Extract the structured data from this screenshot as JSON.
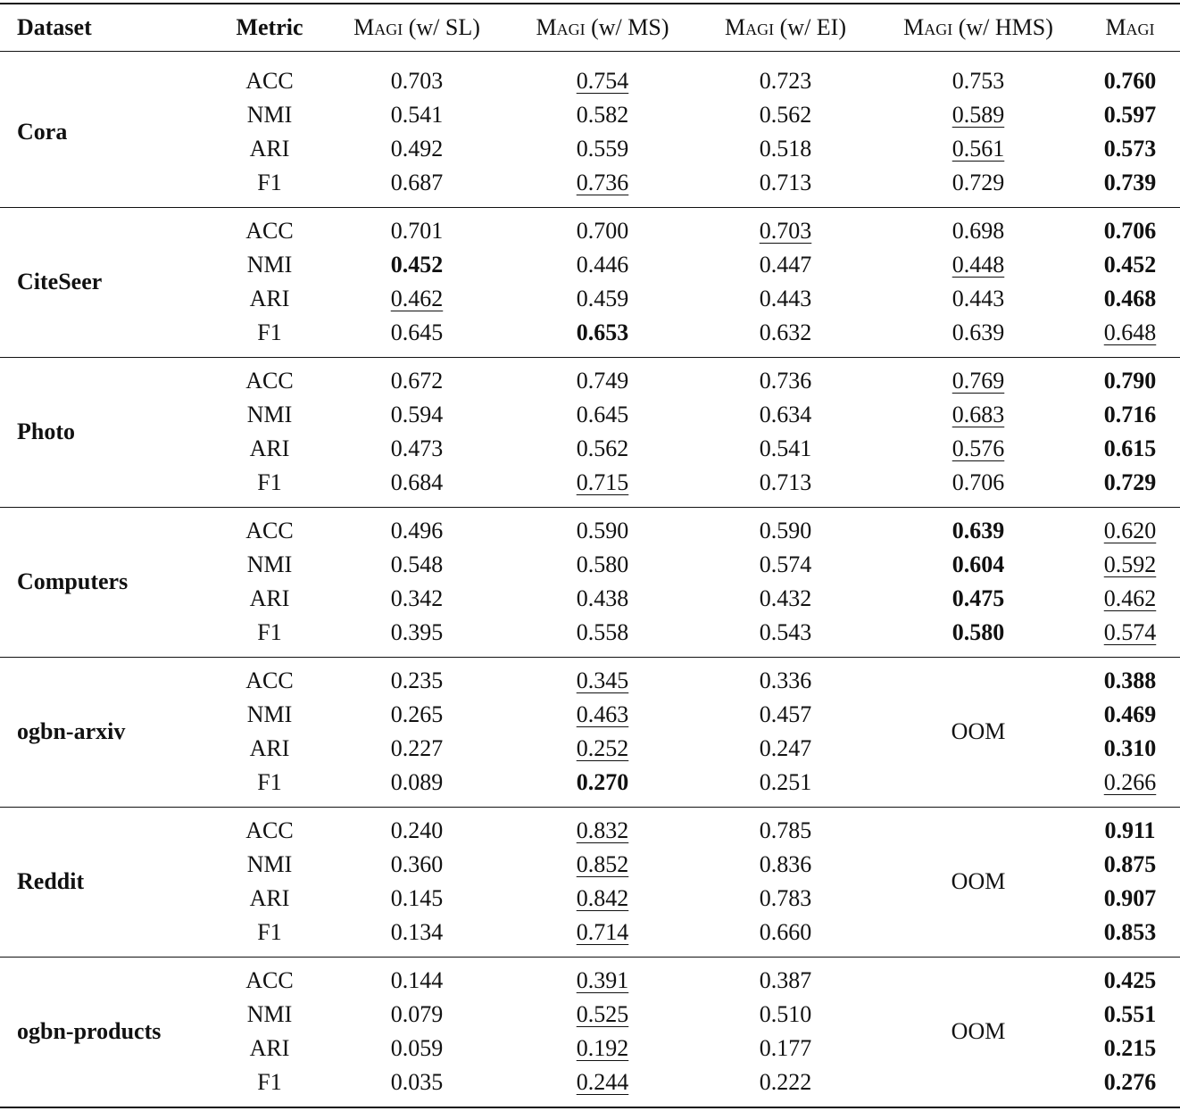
{
  "header": {
    "dataset": "Dataset",
    "metric": "Metric",
    "methods": [
      {
        "name": "Magi",
        "variant": "(w/ SL)"
      },
      {
        "name": "Magi",
        "variant": "(w/ MS)"
      },
      {
        "name": "Magi",
        "variant": "(w/ EI)"
      },
      {
        "name": "Magi",
        "variant": "(w/ HMS)"
      },
      {
        "name": "Magi"
      }
    ]
  },
  "groups": [
    {
      "dataset": "Cora",
      "rows": [
        {
          "metric": "ACC",
          "values": [
            "0.703",
            "0.754",
            "0.723",
            "0.753",
            "0.760"
          ],
          "bold": [
            4
          ],
          "underline": [
            1
          ]
        },
        {
          "metric": "NMI",
          "values": [
            "0.541",
            "0.582",
            "0.562",
            "0.589",
            "0.597"
          ],
          "bold": [
            4
          ],
          "underline": [
            3
          ]
        },
        {
          "metric": "ARI",
          "values": [
            "0.492",
            "0.559",
            "0.518",
            "0.561",
            "0.573"
          ],
          "bold": [
            4
          ],
          "underline": [
            3
          ]
        },
        {
          "metric": "F1",
          "values": [
            "0.687",
            "0.736",
            "0.713",
            "0.729",
            "0.739"
          ],
          "bold": [
            4
          ],
          "underline": [
            1
          ]
        }
      ]
    },
    {
      "dataset": "CiteSeer",
      "rows": [
        {
          "metric": "ACC",
          "values": [
            "0.701",
            "0.700",
            "0.703",
            "0.698",
            "0.706"
          ],
          "bold": [
            4
          ],
          "underline": [
            2
          ]
        },
        {
          "metric": "NMI",
          "values": [
            "0.452",
            "0.446",
            "0.447",
            "0.448",
            "0.452"
          ],
          "bold": [
            0,
            4
          ],
          "underline": [
            3
          ]
        },
        {
          "metric": "ARI",
          "values": [
            "0.462",
            "0.459",
            "0.443",
            "0.443",
            "0.468"
          ],
          "bold": [
            4
          ],
          "underline": [
            0
          ]
        },
        {
          "metric": "F1",
          "values": [
            "0.645",
            "0.653",
            "0.632",
            "0.639",
            "0.648"
          ],
          "bold": [
            1
          ],
          "underline": [
            4
          ]
        }
      ]
    },
    {
      "dataset": "Photo",
      "rows": [
        {
          "metric": "ACC",
          "values": [
            "0.672",
            "0.749",
            "0.736",
            "0.769",
            "0.790"
          ],
          "bold": [
            4
          ],
          "underline": [
            3
          ]
        },
        {
          "metric": "NMI",
          "values": [
            "0.594",
            "0.645",
            "0.634",
            "0.683",
            "0.716"
          ],
          "bold": [
            4
          ],
          "underline": [
            3
          ]
        },
        {
          "metric": "ARI",
          "values": [
            "0.473",
            "0.562",
            "0.541",
            "0.576",
            "0.615"
          ],
          "bold": [
            4
          ],
          "underline": [
            3
          ]
        },
        {
          "metric": "F1",
          "values": [
            "0.684",
            "0.715",
            "0.713",
            "0.706",
            "0.729"
          ],
          "bold": [
            4
          ],
          "underline": [
            1
          ]
        }
      ]
    },
    {
      "dataset": "Computers",
      "rows": [
        {
          "metric": "ACC",
          "values": [
            "0.496",
            "0.590",
            "0.590",
            "0.639",
            "0.620"
          ],
          "bold": [
            3
          ],
          "underline": [
            4
          ]
        },
        {
          "metric": "NMI",
          "values": [
            "0.548",
            "0.580",
            "0.574",
            "0.604",
            "0.592"
          ],
          "bold": [
            3
          ],
          "underline": [
            4
          ]
        },
        {
          "metric": "ARI",
          "values": [
            "0.342",
            "0.438",
            "0.432",
            "0.475",
            "0.462"
          ],
          "bold": [
            3
          ],
          "underline": [
            4
          ]
        },
        {
          "metric": "F1",
          "values": [
            "0.395",
            "0.558",
            "0.543",
            "0.580",
            "0.574"
          ],
          "bold": [
            3
          ],
          "underline": [
            4
          ]
        }
      ]
    },
    {
      "dataset": "ogbn-arxiv",
      "merged": {
        "column": 3,
        "text": "OOM"
      },
      "rows": [
        {
          "metric": "ACC",
          "values": [
            "0.235",
            "0.345",
            "0.336",
            null,
            "0.388"
          ],
          "bold": [
            4
          ],
          "underline": [
            1
          ]
        },
        {
          "metric": "NMI",
          "values": [
            "0.265",
            "0.463",
            "0.457",
            null,
            "0.469"
          ],
          "bold": [
            4
          ],
          "underline": [
            1
          ]
        },
        {
          "metric": "ARI",
          "values": [
            "0.227",
            "0.252",
            "0.247",
            null,
            "0.310"
          ],
          "bold": [
            4
          ],
          "underline": [
            1
          ]
        },
        {
          "metric": "F1",
          "values": [
            "0.089",
            "0.270",
            "0.251",
            null,
            "0.266"
          ],
          "bold": [
            1
          ],
          "underline": [
            4
          ]
        }
      ]
    },
    {
      "dataset": "Reddit",
      "merged": {
        "column": 3,
        "text": "OOM"
      },
      "rows": [
        {
          "metric": "ACC",
          "values": [
            "0.240",
            "0.832",
            "0.785",
            null,
            "0.911"
          ],
          "bold": [
            4
          ],
          "underline": [
            1
          ]
        },
        {
          "metric": "NMI",
          "values": [
            "0.360",
            "0.852",
            "0.836",
            null,
            "0.875"
          ],
          "bold": [
            4
          ],
          "underline": [
            1
          ]
        },
        {
          "metric": "ARI",
          "values": [
            "0.145",
            "0.842",
            "0.783",
            null,
            "0.907"
          ],
          "bold": [
            4
          ],
          "underline": [
            1
          ]
        },
        {
          "metric": "F1",
          "values": [
            "0.134",
            "0.714",
            "0.660",
            null,
            "0.853"
          ],
          "bold": [
            4
          ],
          "underline": [
            1
          ]
        }
      ]
    },
    {
      "dataset": "ogbn-products",
      "merged": {
        "column": 3,
        "text": "OOM"
      },
      "rows": [
        {
          "metric": "ACC",
          "values": [
            "0.144",
            "0.391",
            "0.387",
            null,
            "0.425"
          ],
          "bold": [
            4
          ],
          "underline": [
            1
          ]
        },
        {
          "metric": "NMI",
          "values": [
            "0.079",
            "0.525",
            "0.510",
            null,
            "0.551"
          ],
          "bold": [
            4
          ],
          "underline": [
            1
          ]
        },
        {
          "metric": "ARI",
          "values": [
            "0.059",
            "0.192",
            "0.177",
            null,
            "0.215"
          ],
          "bold": [
            4
          ],
          "underline": [
            1
          ]
        },
        {
          "metric": "F1",
          "values": [
            "0.035",
            "0.244",
            "0.222",
            null,
            "0.276"
          ],
          "bold": [
            4
          ],
          "underline": [
            1
          ]
        }
      ]
    }
  ]
}
